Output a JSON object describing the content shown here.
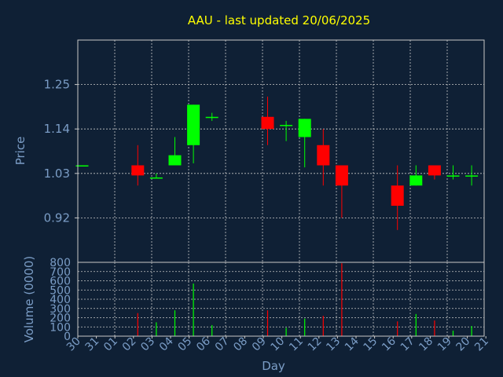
{
  "chart_data": {
    "type": "candlestick",
    "title": "AAU - last updated 20/06/2025",
    "colors": {
      "background": "#0f2035",
      "title": "#ffff00",
      "text": "#7b9dc6",
      "frame": "#c8c8c8",
      "grid": "#c8c8c8",
      "up": "#00ff00",
      "down": "#ff0000"
    },
    "price_panel": {
      "ylabel": "Price",
      "ylim": [
        0.81,
        1.36
      ],
      "yticks": [
        0.92,
        1.03,
        1.14,
        1.25
      ],
      "ytick_labels": [
        "0.92",
        "1.03",
        "1.14",
        "1.25"
      ],
      "grid": true
    },
    "volume_panel": {
      "ylabel": "Volume (0000)",
      "ylim": [
        0,
        800
      ],
      "yticks": [
        0,
        100,
        200,
        300,
        400,
        500,
        600,
        700,
        800
      ],
      "ytick_labels": [
        "0",
        "100",
        "200",
        "300",
        "400",
        "500",
        "600",
        "700",
        "800"
      ],
      "grid": true
    },
    "xlabel": "Day",
    "categories": [
      "30",
      "31",
      "01",
      "02",
      "03",
      "04",
      "05",
      "06",
      "07",
      "08",
      "09",
      "10",
      "11",
      "12",
      "13",
      "14",
      "15",
      "16",
      "17",
      "18",
      "19",
      "20",
      "21"
    ],
    "candles": [
      {
        "day": "30",
        "open": 1.05,
        "high": 1.05,
        "low": 1.05,
        "close": 1.05,
        "volume": 0
      },
      {
        "day": "02",
        "open": 1.05,
        "high": 1.1,
        "low": 1.0,
        "close": 1.025,
        "volume": 250
      },
      {
        "day": "03",
        "open": 1.02,
        "high": 1.03,
        "low": 1.02,
        "close": 1.02,
        "volume": 150
      },
      {
        "day": "04",
        "open": 1.05,
        "high": 1.12,
        "low": 1.05,
        "close": 1.075,
        "volume": 280
      },
      {
        "day": "05",
        "open": 1.1,
        "high": 1.2,
        "low": 1.055,
        "close": 1.2,
        "volume": 570
      },
      {
        "day": "06",
        "open": 1.17,
        "high": 1.18,
        "low": 1.16,
        "close": 1.17,
        "volume": 120
      },
      {
        "day": "09",
        "open": 1.17,
        "high": 1.22,
        "low": 1.1,
        "close": 1.14,
        "volume": 280
      },
      {
        "day": "10",
        "open": 1.15,
        "high": 1.16,
        "low": 1.11,
        "close": 1.15,
        "volume": 90
      },
      {
        "day": "11",
        "open": 1.12,
        "high": 1.165,
        "low": 1.045,
        "close": 1.165,
        "volume": 190
      },
      {
        "day": "12",
        "open": 1.1,
        "high": 1.14,
        "low": 1.0,
        "close": 1.05,
        "volume": 220
      },
      {
        "day": "13",
        "open": 1.05,
        "high": 1.05,
        "low": 0.92,
        "close": 1.0,
        "volume": 790
      },
      {
        "day": "16",
        "open": 1.0,
        "high": 1.05,
        "low": 0.89,
        "close": 0.95,
        "volume": 160
      },
      {
        "day": "17",
        "open": 1.0,
        "high": 1.05,
        "low": 1.0,
        "close": 1.025,
        "volume": 240
      },
      {
        "day": "18",
        "open": 1.05,
        "high": 1.05,
        "low": 1.015,
        "close": 1.025,
        "volume": 170
      },
      {
        "day": "19",
        "open": 1.025,
        "high": 1.05,
        "low": 1.015,
        "close": 1.025,
        "volume": 60
      },
      {
        "day": "20",
        "open": 1.025,
        "high": 1.05,
        "low": 1.0,
        "close": 1.025,
        "volume": 110
      }
    ]
  }
}
